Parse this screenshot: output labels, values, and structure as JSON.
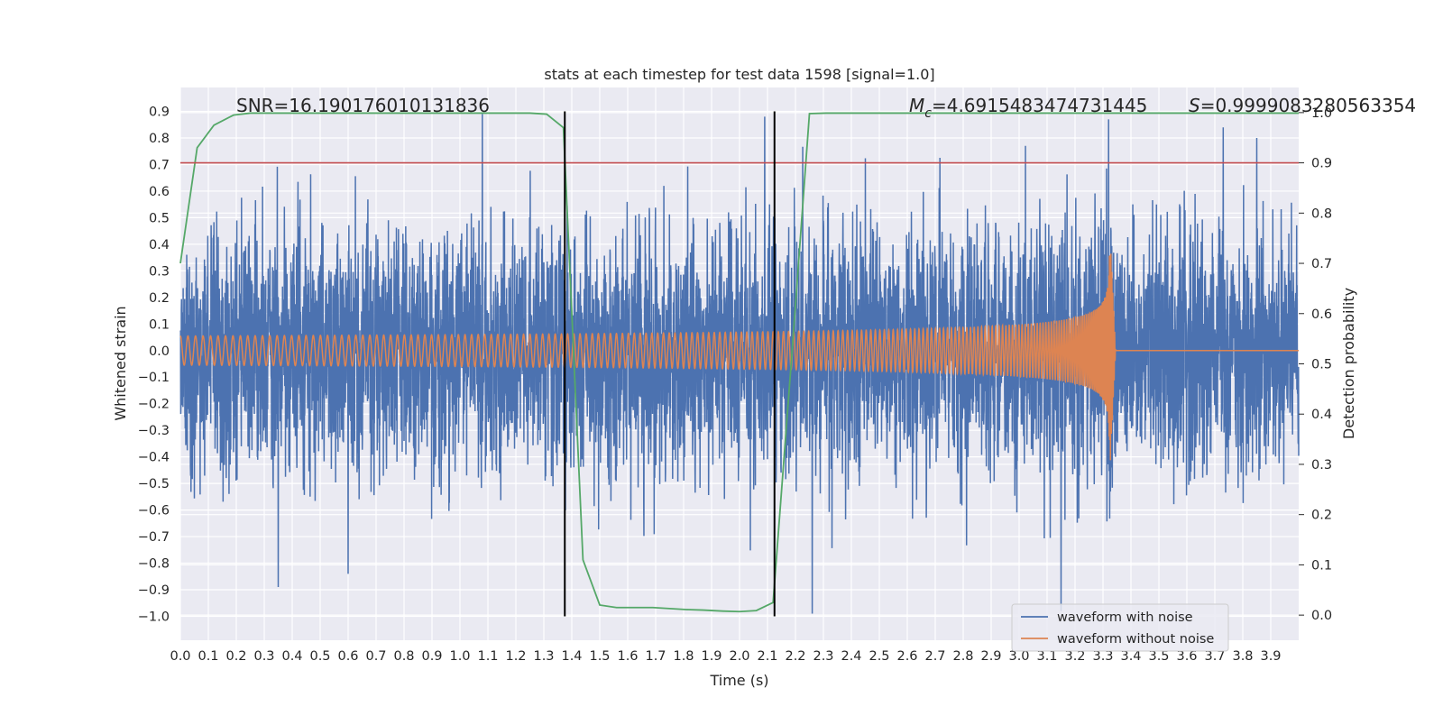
{
  "chart_data": {
    "type": "line",
    "title": "stats at each timestep for test data 1598 [signal=1.0]",
    "xlabel": "Time (s)",
    "ylabel": "Whitened strain",
    "y2label": "Detection probability",
    "xlim": [
      0.0,
      4.0
    ],
    "ylim": [
      -1.09,
      0.99
    ],
    "y2lim": [
      -0.05,
      1.05
    ],
    "xticks": [
      "0.0",
      "0.1",
      "0.2",
      "0.3",
      "0.4",
      "0.5",
      "0.6",
      "0.7",
      "0.8",
      "0.9",
      "1.0",
      "1.1",
      "1.2",
      "1.3",
      "1.4",
      "1.5",
      "1.6",
      "1.7",
      "1.8",
      "1.9",
      "2.0",
      "2.1",
      "2.2",
      "2.3",
      "2.4",
      "2.5",
      "2.6",
      "2.7",
      "2.8",
      "2.9",
      "3.0",
      "3.1",
      "3.2",
      "3.3",
      "3.4",
      "3.5",
      "3.6",
      "3.7",
      "3.8",
      "3.9"
    ],
    "yticks": [
      "0.9",
      "0.8",
      "0.7",
      "0.6",
      "0.5",
      "0.4",
      "0.3",
      "0.2",
      "0.1",
      "0.0",
      "−0.1",
      "−0.2",
      "−0.3",
      "−0.4",
      "−0.5",
      "−0.6",
      "−0.7",
      "−0.8",
      "−0.9",
      "−1.0"
    ],
    "y2ticks": [
      "1.0",
      "0.9",
      "0.8",
      "0.7",
      "0.6",
      "0.5",
      "0.4",
      "0.3",
      "0.2",
      "0.1",
      "0.0"
    ],
    "grid": true,
    "legend_position": "lower-right",
    "annotations": {
      "snr": "SNR=16.190176010131836",
      "mc_symbol": "M",
      "mc_sub": "c",
      "mc_value": "=4.6915483474731445",
      "s_symbol": "S",
      "s_value": "=0.9999083280563354"
    },
    "series": [
      {
        "name": "waveform with noise",
        "color": "#4c72b0",
        "kind": "noise",
        "envelope_std": 0.22,
        "extremes": [
          {
            "x": 1.08,
            "y": 0.89
          },
          {
            "x": 0.35,
            "y": -0.89
          },
          {
            "x": 2.26,
            "y": -0.99
          },
          {
            "x": 3.15,
            "y": -0.98
          },
          {
            "x": 2.09,
            "y": 0.88
          },
          {
            "x": 3.32,
            "y": 0.87
          },
          {
            "x": 3.85,
            "y": 0.8
          },
          {
            "x": 3.73,
            "y": 0.84
          },
          {
            "x": 0.6,
            "y": -0.84
          }
        ]
      },
      {
        "name": "waveform without noise",
        "color": "#dd8452",
        "kind": "chirp",
        "merger_time": 3.325,
        "amplitude_start": 0.055,
        "amplitude_peak": 0.45,
        "ringdown_end": 3.345
      },
      {
        "name": "",
        "color": "#55a868",
        "kind": "probability",
        "axis": "right",
        "x": [
          0.0,
          0.06,
          0.12,
          0.19,
          0.25,
          0.31,
          0.37,
          0.44,
          0.5,
          0.56,
          0.62,
          0.69,
          0.75,
          0.81,
          0.87,
          0.94,
          1.0,
          1.06,
          1.12,
          1.19,
          1.25,
          1.31,
          1.37,
          1.44,
          1.5,
          1.56,
          1.62,
          1.69,
          1.75,
          1.81,
          1.87,
          1.94,
          2.0,
          2.06,
          2.12,
          2.19,
          2.25,
          2.31,
          2.37,
          2.44,
          2.5,
          3.0,
          3.5,
          4.0
        ],
        "values": [
          0.7,
          0.93,
          0.975,
          0.995,
          0.999,
          0.999,
          0.999,
          0.999,
          0.999,
          0.999,
          0.999,
          0.999,
          0.999,
          0.999,
          0.999,
          0.999,
          0.999,
          0.999,
          0.999,
          0.999,
          0.999,
          0.997,
          0.97,
          0.11,
          0.02,
          0.015,
          0.015,
          0.015,
          0.013,
          0.011,
          0.01,
          0.008,
          0.007,
          0.009,
          0.025,
          0.54,
          0.998,
          0.999,
          0.999,
          0.999,
          0.999,
          0.999,
          0.999,
          0.999
        ]
      }
    ],
    "hlines": [
      {
        "y2": 0.9,
        "color": "#c44e52"
      }
    ],
    "vlines": [
      {
        "x": 1.375,
        "color": "#000000"
      },
      {
        "x": 2.125,
        "color": "#000000"
      }
    ]
  }
}
